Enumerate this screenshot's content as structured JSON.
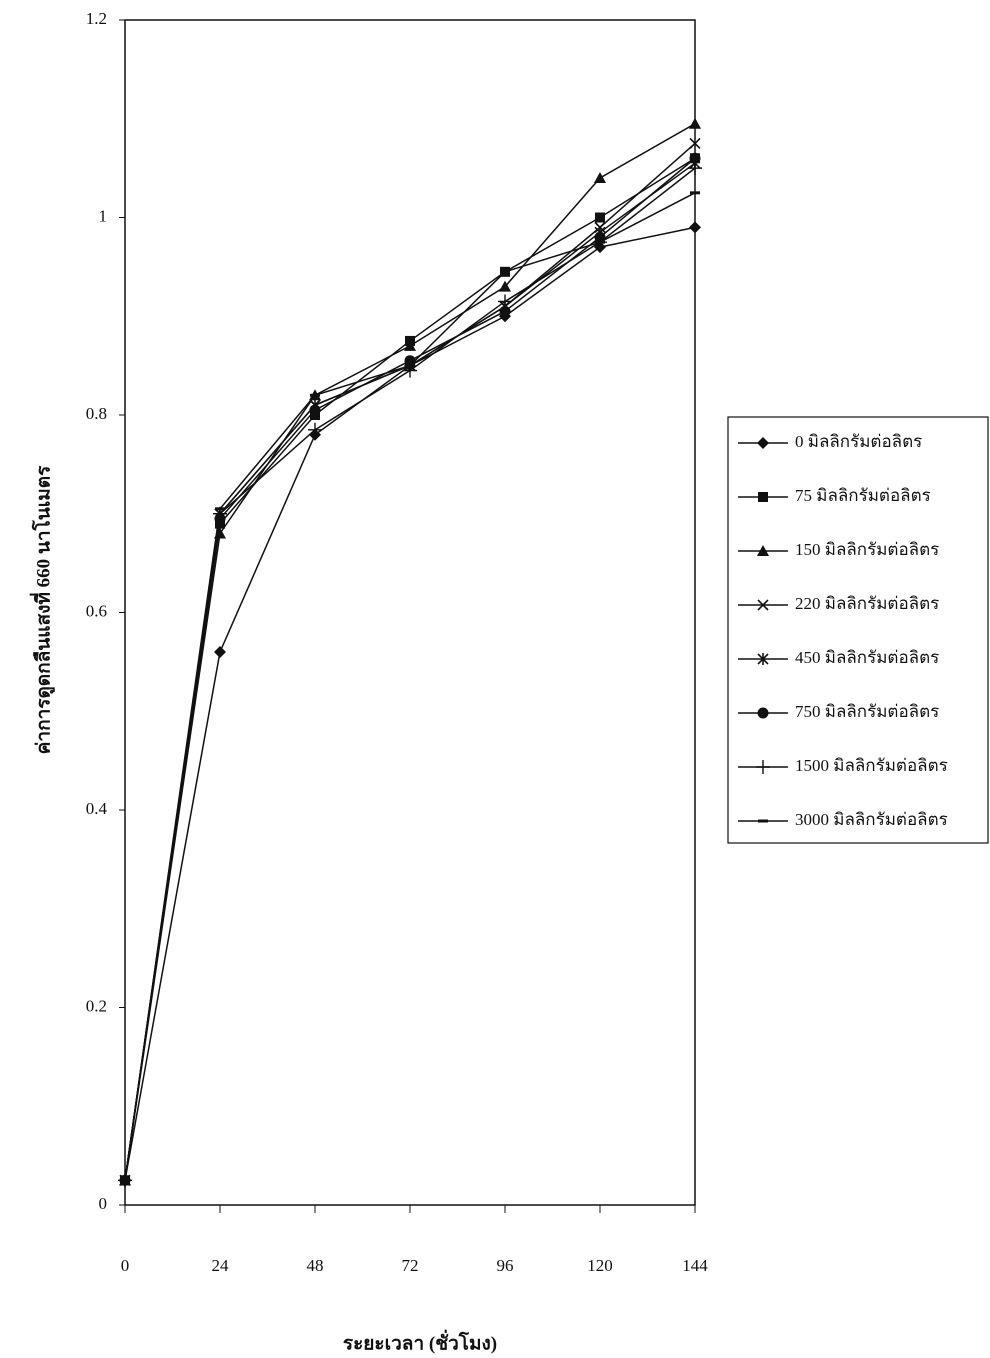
{
  "chart_data": {
    "type": "line",
    "y_label": "ค่าการดูดกลืนแสงที่ 660 นาโนเมตร",
    "x_label": "ระยะเวลา (ชั่วโมง)",
    "x": [
      0,
      24,
      48,
      72,
      96,
      120,
      144
    ],
    "xlim": [
      0,
      144
    ],
    "xticks": [
      0,
      24,
      48,
      72,
      96,
      120,
      144
    ],
    "ylim": [
      0,
      1.2
    ],
    "yticks": [
      0,
      0.2,
      0.4,
      0.6,
      0.8,
      1,
      1.2
    ],
    "legend": "right",
    "series": [
      {
        "name": "0 มิลลิกรัมต่อลิตร",
        "color": "#111111",
        "marker": "diamond",
        "values": [
          0.025,
          0.56,
          0.78,
          0.85,
          0.9,
          0.97,
          0.99
        ]
      },
      {
        "name": "75 มิลลิกรัมต่อลิตร",
        "color": "#111111",
        "marker": "square",
        "values": [
          0.025,
          0.69,
          0.8,
          0.875,
          0.945,
          1.0,
          1.06
        ]
      },
      {
        "name": "150 มิลลิกรัมต่อลิตร",
        "color": "#111111",
        "marker": "triangle",
        "values": [
          0.025,
          0.68,
          0.82,
          0.87,
          0.93,
          1.04,
          1.095
        ]
      },
      {
        "name": "220 มิลลิกรัมต่อลิตร",
        "color": "#111111",
        "marker": "x",
        "values": [
          0.025,
          0.7,
          0.81,
          0.85,
          0.91,
          0.99,
          1.075
        ]
      },
      {
        "name": "450 มิลลิกรัมต่อลิตร",
        "color": "#111111",
        "marker": "asterisk",
        "values": [
          0.025,
          0.7,
          0.81,
          0.85,
          0.91,
          0.985,
          1.055
        ]
      },
      {
        "name": "750 มิลลิกรัมต่อลิตร",
        "color": "#111111",
        "marker": "circle",
        "values": [
          0.025,
          0.695,
          0.805,
          0.855,
          0.905,
          0.98,
          1.06
        ]
      },
      {
        "name": "1500 มิลลิกรัมต่อลิตร",
        "color": "#111111",
        "marker": "plus",
        "values": [
          0.025,
          0.7,
          0.785,
          0.845,
          0.915,
          0.975,
          1.05
        ]
      },
      {
        "name": "3000 มิลลิกรัมต่อลิตร",
        "color": "#111111",
        "marker": "dash",
        "values": [
          0.025,
          0.705,
          0.82,
          0.85,
          0.945,
          0.975,
          1.025
        ]
      }
    ]
  }
}
